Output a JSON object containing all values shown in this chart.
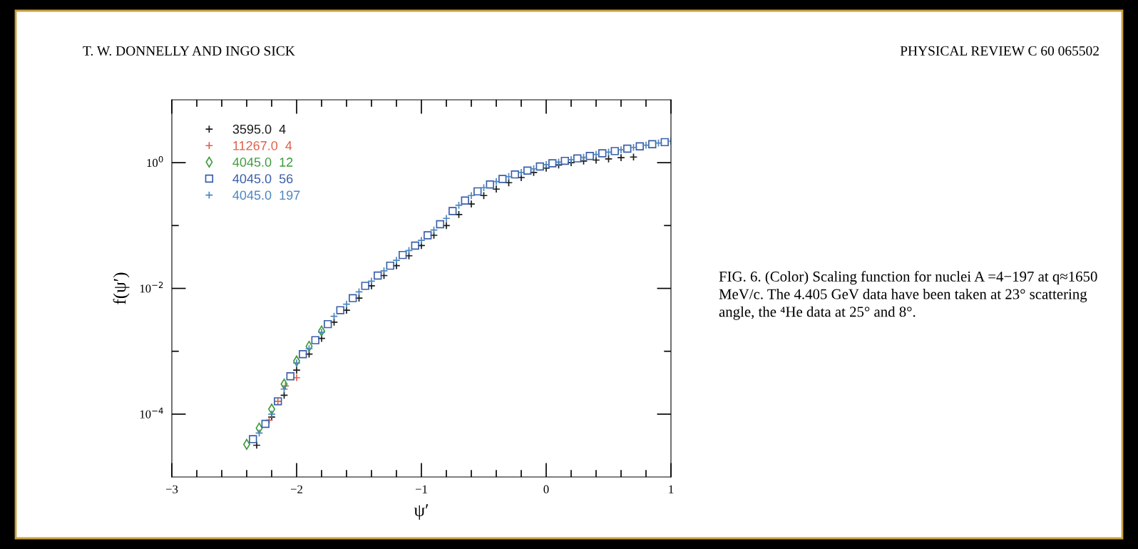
{
  "chart_data": {
    "type": "scatter",
    "title": "T. W. DONNELLY AND INGO SICK",
    "subtitle": "PHYSICAL REVIEW C 60 065502",
    "xlabel": "ψ′",
    "ylabel": "f(ψ′)",
    "log": "y",
    "xlim": [
      -3,
      1
    ],
    "ylim": [
      1e-05,
      10
    ],
    "xticks": [
      -3,
      {
        "value": -2.8,
        "label": null
      },
      {
        "value": -2.6,
        "label": null
      },
      {
        "value": -2.4,
        "label": null
      },
      {
        "value": -2.2,
        "label": null
      },
      -2,
      {
        "value": -1.8,
        "label": null
      },
      {
        "value": -1.6,
        "label": null
      },
      {
        "value": -1.4,
        "label": null
      },
      {
        "value": -1.2,
        "label": null
      },
      -1,
      {
        "value": -0.8,
        "label": null
      },
      {
        "value": -0.6,
        "label": null
      },
      {
        "value": -0.4,
        "label": null
      },
      {
        "value": -0.2,
        "label": null
      },
      0,
      {
        "value": 0.2,
        "label": null
      },
      {
        "value": 0.4,
        "label": null
      },
      {
        "value": 0.6,
        "label": null
      },
      {
        "value": 0.8,
        "label": null
      },
      1
    ],
    "yticks": [
      {
        "value": 0.0001,
        "label": "10$^{−4}$"
      },
      {
        "value": 0.001,
        "label": null
      },
      {
        "value": 0.01,
        "label": "10$^{−2}$"
      },
      {
        "value": 0.1,
        "label": null
      },
      {
        "value": 1,
        "label": "10$^{0}$"
      }
    ],
    "grid": false,
    "legend": "top left",
    "annotations": [
      "FIG. 6. (Color) Scaling function for nuclei A =4−197 at q≈1650 MeV/c. The 4.405 GeV data have been taken at 23° scattering angle, the ⁴He data at 25° and 8°."
    ],
    "series": [
      {
        "name": "3595.0  4",
        "color": "#1a1a1a",
        "marker": "cross",
        "x": [
          -2.32,
          -2.2,
          -2.1,
          -2.0,
          -1.9,
          -1.8,
          -1.7,
          -1.6,
          -1.5,
          -1.4,
          -1.3,
          -1.2,
          -1.1,
          -1.0,
          -0.9,
          -0.8,
          -0.7,
          -0.6,
          -0.5,
          -0.4,
          -0.3,
          -0.2,
          -0.1,
          0.0,
          0.1,
          0.2,
          0.3,
          0.4,
          0.5,
          0.6,
          0.7
        ],
        "values": [
          3.2e-05,
          9e-05,
          0.0002,
          0.0005,
          0.0009,
          0.0016,
          0.0029,
          0.0045,
          0.007,
          0.011,
          0.016,
          0.023,
          0.033,
          0.048,
          0.07,
          0.1,
          0.15,
          0.22,
          0.3,
          0.38,
          0.48,
          0.58,
          0.7,
          0.82,
          0.92,
          1.0,
          1.06,
          1.1,
          1.15,
          1.2,
          1.23
        ]
      },
      {
        "name": "11267.0  4",
        "color": "#e0604a",
        "marker": "cross",
        "x": [
          -2.22,
          -2.15,
          -2.09,
          -2.0
        ],
        "values": [
          8e-05,
          0.00016,
          0.00028,
          0.00038
        ]
      },
      {
        "name": "4045.0  12",
        "color": "#3d9a3d",
        "marker": "diamond",
        "x": [
          -2.4,
          -2.3,
          -2.2,
          -2.1,
          -2.0,
          -1.9,
          -1.8
        ],
        "values": [
          3.3e-05,
          6e-05,
          0.00012,
          0.0003,
          0.0007,
          0.0012,
          0.0021
        ]
      },
      {
        "name": "4045.0  56",
        "color": "#3a5fa8",
        "marker": "square",
        "x": [
          -2.35,
          -2.25,
          -2.15,
          -2.05,
          -1.95,
          -1.85,
          -1.75,
          -1.65,
          -1.55,
          -1.45,
          -1.35,
          -1.25,
          -1.15,
          -1.05,
          -0.95,
          -0.85,
          -0.75,
          -0.65,
          -0.55,
          -0.45,
          -0.35,
          -0.25,
          -0.15,
          -0.05,
          0.05,
          0.15,
          0.25,
          0.35,
          0.45,
          0.55,
          0.65,
          0.75,
          0.85,
          0.95
        ],
        "values": [
          4e-05,
          7e-05,
          0.00016,
          0.0004,
          0.0009,
          0.0015,
          0.0027,
          0.0045,
          0.007,
          0.011,
          0.016,
          0.023,
          0.034,
          0.048,
          0.07,
          0.105,
          0.17,
          0.25,
          0.35,
          0.45,
          0.55,
          0.65,
          0.75,
          0.87,
          0.98,
          1.07,
          1.17,
          1.28,
          1.41,
          1.53,
          1.67,
          1.82,
          1.97,
          2.12
        ]
      },
      {
        "name": "4045.0  197",
        "color": "#4a86c0",
        "marker": "cross",
        "x": [
          -2.3,
          -2.2,
          -2.1,
          -2.0,
          -1.9,
          -1.8,
          -1.7,
          -1.6,
          -1.5,
          -1.4,
          -1.3,
          -1.2,
          -1.1,
          -1.0,
          -0.9,
          -0.8,
          -0.7,
          -0.6,
          -0.5,
          -0.4,
          -0.3,
          -0.2,
          -0.1,
          0.0,
          0.1,
          0.2,
          0.3,
          0.4,
          0.5,
          0.6,
          0.7,
          0.8,
          0.9,
          1.0
        ],
        "values": [
          5e-05,
          0.0001,
          0.00025,
          0.00065,
          0.0011,
          0.002,
          0.0036,
          0.0056,
          0.0088,
          0.013,
          0.019,
          0.028,
          0.04,
          0.058,
          0.085,
          0.13,
          0.21,
          0.3,
          0.4,
          0.5,
          0.6,
          0.7,
          0.8,
          0.93,
          1.02,
          1.12,
          1.22,
          1.35,
          1.47,
          1.6,
          1.75,
          1.9,
          2.05,
          2.2
        ]
      }
    ]
  }
}
